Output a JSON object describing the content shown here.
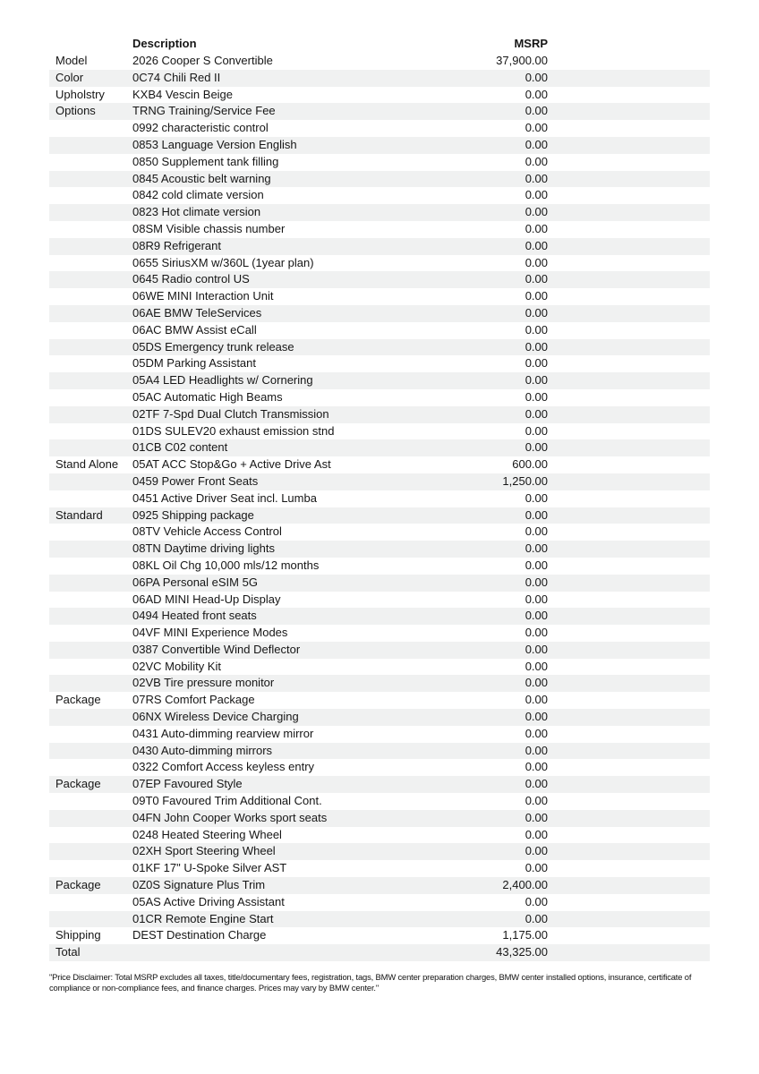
{
  "table": {
    "columns": {
      "description": "Description",
      "msrp": "MSRP"
    },
    "rows": [
      {
        "category": "Model",
        "description": "2026 Cooper S Convertible",
        "msrp": "37,900.00"
      },
      {
        "category": "Color",
        "description": "0C74 Chili Red II",
        "msrp": "0.00"
      },
      {
        "category": "Upholstry",
        "description": "KXB4 Vescin Beige",
        "msrp": "0.00"
      },
      {
        "category": "Options",
        "description": "TRNG Training/Service Fee",
        "msrp": "0.00"
      },
      {
        "category": "",
        "description": "0992 characteristic control",
        "msrp": "0.00"
      },
      {
        "category": "",
        "description": "0853 Language Version English",
        "msrp": "0.00"
      },
      {
        "category": "",
        "description": "0850 Supplement tank filling",
        "msrp": "0.00"
      },
      {
        "category": "",
        "description": "0845 Acoustic belt warning",
        "msrp": "0.00"
      },
      {
        "category": "",
        "description": "0842 cold climate version",
        "msrp": "0.00"
      },
      {
        "category": "",
        "description": "0823 Hot climate version",
        "msrp": "0.00"
      },
      {
        "category": "",
        "description": "08SM Visible chassis number",
        "msrp": "0.00"
      },
      {
        "category": "",
        "description": "08R9 Refrigerant",
        "msrp": "0.00"
      },
      {
        "category": "",
        "description": "0655 SiriusXM w/360L (1year plan)",
        "msrp": "0.00"
      },
      {
        "category": "",
        "description": "0645 Radio control US",
        "msrp": "0.00"
      },
      {
        "category": "",
        "description": "06WE MINI Interaction Unit",
        "msrp": "0.00"
      },
      {
        "category": "",
        "description": "06AE BMW TeleServices",
        "msrp": "0.00"
      },
      {
        "category": "",
        "description": "06AC BMW Assist eCall",
        "msrp": "0.00"
      },
      {
        "category": "",
        "description": "05DS Emergency trunk release",
        "msrp": "0.00"
      },
      {
        "category": "",
        "description": "05DM Parking Assistant",
        "msrp": "0.00"
      },
      {
        "category": "",
        "description": "05A4 LED Headlights w/ Cornering",
        "msrp": "0.00"
      },
      {
        "category": "",
        "description": "05AC Automatic High Beams",
        "msrp": "0.00"
      },
      {
        "category": "",
        "description": "02TF 7-Spd Dual Clutch Transmission",
        "msrp": "0.00"
      },
      {
        "category": "",
        "description": "01DS SULEV20 exhaust emission stnd",
        "msrp": "0.00"
      },
      {
        "category": "",
        "description": "01CB C02 content",
        "msrp": "0.00"
      },
      {
        "category": "Stand Alone",
        "description": "05AT ACC Stop&Go + Active Drive Ast",
        "msrp": "600.00"
      },
      {
        "category": "",
        "description": "0459 Power Front Seats",
        "msrp": "1,250.00"
      },
      {
        "category": "",
        "description": "0451 Active Driver Seat incl. Lumba",
        "msrp": "0.00"
      },
      {
        "category": "Standard",
        "description": "0925 Shipping package",
        "msrp": "0.00"
      },
      {
        "category": "",
        "description": "08TV Vehicle Access Control",
        "msrp": "0.00"
      },
      {
        "category": "",
        "description": "08TN Daytime driving lights",
        "msrp": "0.00"
      },
      {
        "category": "",
        "description": "08KL Oil Chg 10,000 mls/12 months",
        "msrp": "0.00"
      },
      {
        "category": "",
        "description": "06PA Personal eSIM 5G",
        "msrp": "0.00"
      },
      {
        "category": "",
        "description": "06AD MINI Head-Up Display",
        "msrp": "0.00"
      },
      {
        "category": "",
        "description": "0494 Heated front seats",
        "msrp": "0.00"
      },
      {
        "category": "",
        "description": "04VF MINI Experience Modes",
        "msrp": "0.00"
      },
      {
        "category": "",
        "description": "0387 Convertible Wind Deflector",
        "msrp": "0.00"
      },
      {
        "category": "",
        "description": "02VC Mobility Kit",
        "msrp": "0.00"
      },
      {
        "category": "",
        "description": "02VB Tire pressure monitor",
        "msrp": "0.00"
      },
      {
        "category": "Package",
        "description": "07RS Comfort Package",
        "msrp": "0.00"
      },
      {
        "category": "",
        "description": "06NX Wireless Device Charging",
        "msrp": "0.00"
      },
      {
        "category": "",
        "description": "0431 Auto-dimming rearview mirror",
        "msrp": "0.00"
      },
      {
        "category": "",
        "description": "0430 Auto-dimming mirrors",
        "msrp": "0.00"
      },
      {
        "category": "",
        "description": "0322 Comfort Access keyless entry",
        "msrp": "0.00"
      },
      {
        "category": "Package",
        "description": "07EP Favoured Style",
        "msrp": "0.00"
      },
      {
        "category": "",
        "description": "09T0 Favoured Trim Additional Cont.",
        "msrp": "0.00"
      },
      {
        "category": "",
        "description": "04FN John Cooper Works sport seats",
        "msrp": "0.00"
      },
      {
        "category": "",
        "description": "0248 Heated Steering Wheel",
        "msrp": "0.00"
      },
      {
        "category": "",
        "description": "02XH Sport Steering Wheel",
        "msrp": "0.00"
      },
      {
        "category": "",
        "description": "01KF 17\" U-Spoke Silver AST",
        "msrp": "0.00"
      },
      {
        "category": "Package",
        "description": "0Z0S Signature Plus Trim",
        "msrp": "2,400.00"
      },
      {
        "category": "",
        "description": "05AS Active Driving Assistant",
        "msrp": "0.00"
      },
      {
        "category": "",
        "description": "01CR Remote Engine Start",
        "msrp": "0.00"
      },
      {
        "category": "Shipping",
        "description": "DEST Destination Charge",
        "msrp": "1,175.00"
      },
      {
        "category": "Total",
        "description": "",
        "msrp": "43,325.00"
      }
    ]
  },
  "disclaimer": "\"Price Disclaimer: Total MSRP excludes all taxes, title/documentary fees, registration, tags, BMW center preparation charges, BMW center installed options, insurance, certificate of compliance or non-compliance fees, and finance charges. Prices may vary by BMW center.\"",
  "colors": {
    "row_stripe": "#f0f1f1",
    "text": "#161616",
    "background": "#ffffff"
  }
}
